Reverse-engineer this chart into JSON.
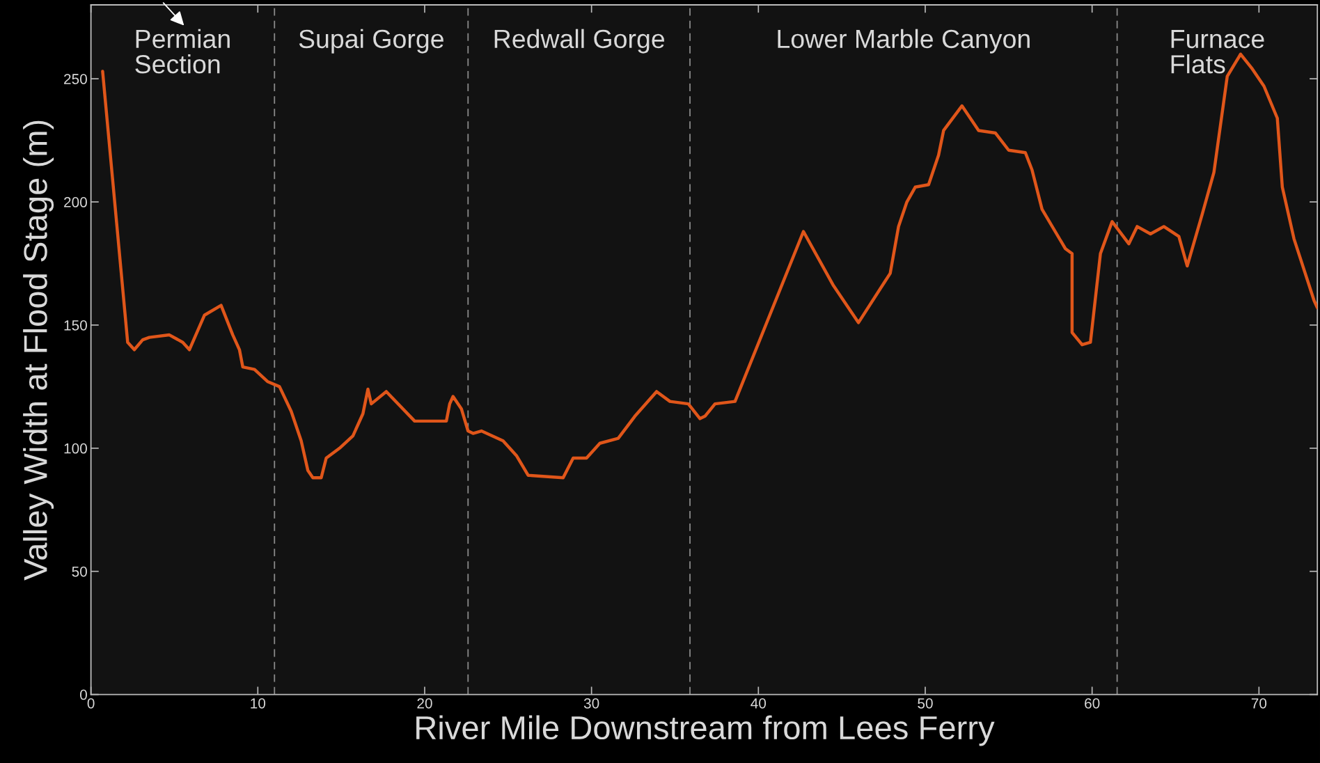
{
  "chart_data": {
    "type": "line",
    "xlabel": "River Mile Downstream from Lees Ferry",
    "ylabel": "Valley Width at Flood Stage (m)",
    "x": [
      0.7,
      2.2,
      2.6,
      3.1,
      3.5,
      4.7,
      5.5,
      5.9,
      6.8,
      7.8,
      8.5,
      8.9,
      9.1,
      9.8,
      10.6,
      11.3,
      12.0,
      12.6,
      13.0,
      13.3,
      13.8,
      14.1,
      14.9,
      15.7,
      16.3,
      16.6,
      16.8,
      17.7,
      19.4,
      21.3,
      21.5,
      21.7,
      22.2,
      22.6,
      22.9,
      23.4,
      24.7,
      25.5,
      26.2,
      28.3,
      28.9,
      29.7,
      30.5,
      31.6,
      32.6,
      33.9,
      34.7,
      35.8,
      36.5,
      36.8,
      37.4,
      38.6,
      42.7,
      44.5,
      46.0,
      47.9,
      48.4,
      48.9,
      49.4,
      50.2,
      50.8,
      51.1,
      52.2,
      53.2,
      54.2,
      55.0,
      56.0,
      56.4,
      57.0,
      58.4,
      58.8,
      58.8,
      59.4,
      59.9,
      60.5,
      61.2,
      62.2,
      62.7,
      63.5,
      64.3,
      65.2,
      65.7,
      66.6,
      67.3,
      68.1,
      68.9,
      69.6,
      70.3,
      71.1,
      71.4,
      72.1,
      73.3,
      73.5
    ],
    "series": [
      {
        "color": "#e0561a",
        "values": [
          253,
          143,
          140,
          144,
          145,
          146,
          143,
          140,
          154,
          158,
          146,
          140,
          133,
          132,
          127,
          125,
          115,
          103,
          91,
          88,
          88,
          96,
          100,
          105,
          114,
          124,
          118,
          123,
          111,
          111,
          118,
          121,
          116,
          107,
          106,
          107,
          103,
          97,
          89,
          88,
          96,
          96,
          102,
          104,
          113,
          123,
          119,
          118,
          112,
          113,
          118,
          119,
          188,
          166,
          151,
          171,
          190,
          200,
          206,
          207,
          219,
          229,
          239,
          229,
          228,
          221,
          220,
          213,
          197,
          181,
          179,
          147,
          142,
          143,
          179,
          192,
          183,
          190,
          187,
          190,
          186,
          174,
          195,
          212,
          251,
          260,
          254,
          247,
          234,
          206,
          185,
          160,
          157
        ]
      }
    ],
    "line_style": "solid",
    "marker": "none",
    "xlim": [
      0,
      73.5
    ],
    "xticks": [
      0,
      10,
      20,
      30,
      40,
      50,
      60,
      70
    ],
    "ylim": [
      0,
      280
    ],
    "yticks": [
      0,
      50,
      100,
      150,
      200,
      250
    ],
    "grid": false,
    "ref_lines": [
      {
        "axis": "x",
        "value": 11,
        "color": "#8a8a8a",
        "line_style": "dashed"
      },
      {
        "axis": "x",
        "value": 22.6,
        "color": "#8a8a8a",
        "line_style": "dashed"
      },
      {
        "axis": "x",
        "value": 35.9,
        "color": "#8a8a8a",
        "line_style": "dashed"
      },
      {
        "axis": "x",
        "value": 61.5,
        "color": "#8a8a8a",
        "line_style": "dashed"
      }
    ],
    "annotations": [
      "Permian\nSection",
      "Supai Gorge",
      "Redwall Gorge",
      "Lower Marble Canyon",
      "Furnace\nFlats"
    ]
  }
}
